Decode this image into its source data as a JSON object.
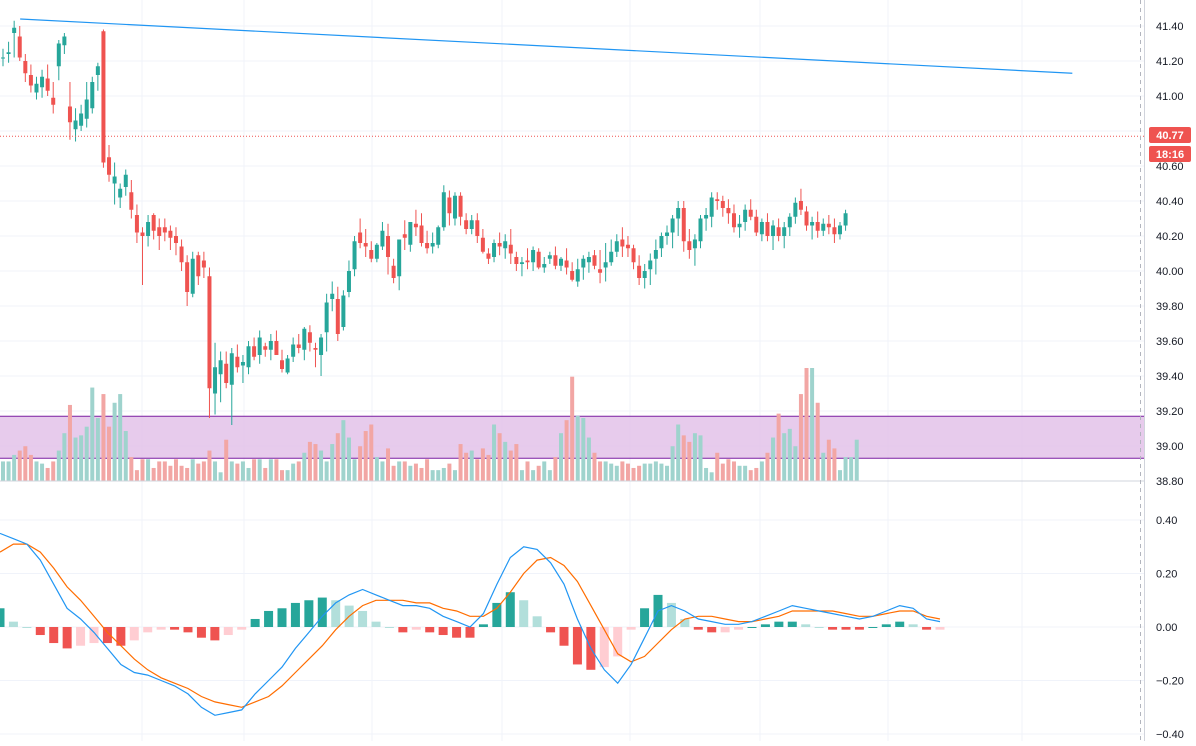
{
  "colors": {
    "up": "#26a69a",
    "down": "#ef5350",
    "up_volume": "#9fd3cd",
    "down_volume": "#f2a6a4",
    "trendline": "#2196f3",
    "macd_line": "#2196f3",
    "signal_line": "#ff6d00",
    "hist_up_strong": "#26a69a",
    "hist_up_weak": "#b2dfdb",
    "hist_down_strong": "#ef5350",
    "hist_down_weak": "#ffcdd2",
    "zone_fill": "#e1bee7",
    "zone_border": "#7b1fa2",
    "grid": "#f0f3fa",
    "price_line": "#ef5350"
  },
  "price_axis": {
    "ticks": [
      "41.40",
      "41.20",
      "41.00",
      "40.80",
      "40.60",
      "40.40",
      "40.20",
      "40.00",
      "39.80",
      "39.60",
      "39.40",
      "39.20",
      "39.00",
      "38.80"
    ],
    "last_price_label": "40.77",
    "countdown_label": "18:16"
  },
  "macd_axis": {
    "ticks": [
      "0.40",
      "0.20",
      "0.00",
      "−0.20",
      "−0.40"
    ]
  },
  "chart_data": [
    {
      "type": "candlestick",
      "ylim": [
        38.8,
        41.45
      ],
      "last_price": 40.77,
      "grid": true,
      "trendline": {
        "from": {
          "bar": 2,
          "price": 41.44
        },
        "to": {
          "bar": 154,
          "price": 41.13
        }
      },
      "zone": {
        "low": 38.93,
        "high": 39.17
      },
      "volume": {
        "overlay": "bottom of price pane",
        "values": [
          9,
          9,
          12,
          14,
          16,
          12,
          9,
          8,
          6,
          9,
          14,
          22,
          35,
          20,
          21,
          25,
          43,
          29,
          40,
          25,
          36,
          40,
          23,
          11,
          5,
          10,
          10,
          6,
          9,
          9,
          7,
          10,
          7,
          6,
          10,
          8,
          9,
          14,
          9,
          4,
          19,
          9,
          8,
          9,
          6,
          10,
          10,
          6,
          10,
          10,
          5,
          5,
          8,
          9,
          13,
          18,
          17,
          14,
          9,
          17,
          22,
          28,
          20,
          10,
          16,
          23,
          26,
          11,
          9,
          15,
          7,
          9,
          9,
          7,
          8,
          6,
          10,
          5,
          5,
          6,
          8,
          5,
          17,
          13,
          14,
          10,
          15,
          12,
          26,
          22,
          18,
          14,
          17,
          5,
          9,
          5,
          7,
          9,
          5,
          11,
          22,
          28,
          48,
          30,
          29,
          20,
          13,
          9,
          9,
          8,
          7,
          9,
          8,
          6,
          7,
          8,
          8,
          9,
          8,
          7,
          16,
          26,
          21,
          18,
          22,
          21,
          6,
          4,
          13,
          8,
          10,
          9,
          7,
          7,
          5,
          6,
          9,
          13,
          20,
          31,
          22,
          24,
          16,
          40,
          52,
          52,
          36,
          13,
          19,
          15,
          5,
          11,
          11,
          19
        ],
        "max": 52
      },
      "candles": [
        [
          41.22,
          41.27,
          41.17,
          41.22
        ],
        [
          41.24,
          41.31,
          41.19,
          41.25
        ],
        [
          41.36,
          41.43,
          41.22,
          41.39
        ],
        [
          41.34,
          41.4,
          41.2,
          41.22
        ],
        [
          41.2,
          41.24,
          41.08,
          41.13
        ],
        [
          41.12,
          41.18,
          41.02,
          41.06
        ],
        [
          41.02,
          41.11,
          40.98,
          41.07
        ],
        [
          41.05,
          41.15,
          40.99,
          41.11
        ],
        [
          41.1,
          41.18,
          41.0,
          41.03
        ],
        [
          40.99,
          41.08,
          40.9,
          40.95
        ],
        [
          41.17,
          41.32,
          41.09,
          41.3
        ],
        [
          41.29,
          41.36,
          41.24,
          41.34
        ],
        [
          40.94,
          41.08,
          40.75,
          40.85
        ],
        [
          40.81,
          40.93,
          40.74,
          40.86
        ],
        [
          40.83,
          40.95,
          40.8,
          40.9
        ],
        [
          40.87,
          41.08,
          40.82,
          40.98
        ],
        [
          40.93,
          41.11,
          40.9,
          41.08
        ],
        [
          41.12,
          41.19,
          41.03,
          41.17
        ],
        [
          41.37,
          41.38,
          40.59,
          40.62
        ],
        [
          40.65,
          40.72,
          40.51,
          40.55
        ],
        [
          40.5,
          40.62,
          40.38,
          40.54
        ],
        [
          40.42,
          40.5,
          40.36,
          40.47
        ],
        [
          40.48,
          40.58,
          40.43,
          40.55
        ],
        [
          40.45,
          40.52,
          40.3,
          40.35
        ],
        [
          40.32,
          40.38,
          40.16,
          40.22
        ],
        [
          40.22,
          40.25,
          39.92,
          40.2
        ],
        [
          40.2,
          40.32,
          40.14,
          40.28
        ],
        [
          40.32,
          40.33,
          40.18,
          40.23
        ],
        [
          40.25,
          40.3,
          40.12,
          40.2
        ],
        [
          40.25,
          40.3,
          40.17,
          40.22
        ],
        [
          40.23,
          40.26,
          40.12,
          40.19
        ],
        [
          40.2,
          40.25,
          40.09,
          40.16
        ],
        [
          40.14,
          40.18,
          40.0,
          40.05
        ],
        [
          40.05,
          40.09,
          39.8,
          39.88
        ],
        [
          39.87,
          40.11,
          39.85,
          40.07
        ],
        [
          40.09,
          40.11,
          39.92,
          39.97
        ],
        [
          40.06,
          40.11,
          39.96,
          40.02
        ],
        [
          39.97,
          40.02,
          39.16,
          39.33
        ],
        [
          39.3,
          39.59,
          39.18,
          39.45
        ],
        [
          39.41,
          39.54,
          39.25,
          39.49
        ],
        [
          39.47,
          39.54,
          39.33,
          39.36
        ],
        [
          39.35,
          39.56,
          39.12,
          39.53
        ],
        [
          39.51,
          39.58,
          39.42,
          39.45
        ],
        [
          39.46,
          39.52,
          39.36,
          39.48
        ],
        [
          39.45,
          39.6,
          39.41,
          39.57
        ],
        [
          39.57,
          39.62,
          39.49,
          39.51
        ],
        [
          39.52,
          39.66,
          39.47,
          39.62
        ],
        [
          39.57,
          39.59,
          39.51,
          39.55
        ],
        [
          39.55,
          39.64,
          39.49,
          39.6
        ],
        [
          39.6,
          39.66,
          39.52,
          39.52
        ],
        [
          39.49,
          39.55,
          39.42,
          39.44
        ],
        [
          39.42,
          39.52,
          39.41,
          39.5
        ],
        [
          39.51,
          39.62,
          39.48,
          39.58
        ],
        [
          39.58,
          39.64,
          39.53,
          39.56
        ],
        [
          39.55,
          39.68,
          39.49,
          39.67
        ],
        [
          39.65,
          39.69,
          39.54,
          39.59
        ],
        [
          39.56,
          39.59,
          39.45,
          39.55
        ],
        [
          39.52,
          39.64,
          39.4,
          39.62
        ],
        [
          39.65,
          39.87,
          39.54,
          39.82
        ],
        [
          39.84,
          39.94,
          39.77,
          39.87
        ],
        [
          39.84,
          39.91,
          39.6,
          39.64
        ],
        [
          39.68,
          39.89,
          39.66,
          39.86
        ],
        [
          39.88,
          40.06,
          39.85,
          40.0
        ],
        [
          40.01,
          40.2,
          39.97,
          40.17
        ],
        [
          40.22,
          40.3,
          40.13,
          40.16
        ],
        [
          40.16,
          40.24,
          40.08,
          40.14
        ],
        [
          40.12,
          40.17,
          40.05,
          40.07
        ],
        [
          40.07,
          40.16,
          40.05,
          40.15
        ],
        [
          40.14,
          40.28,
          40.12,
          40.23
        ],
        [
          40.2,
          40.27,
          39.98,
          40.08
        ],
        [
          40.03,
          40.07,
          39.93,
          39.96
        ],
        [
          39.97,
          40.17,
          39.89,
          40.18
        ],
        [
          40.21,
          40.29,
          40.12,
          40.19
        ],
        [
          40.15,
          40.28,
          40.11,
          40.28
        ],
        [
          40.27,
          40.35,
          40.2,
          40.25
        ],
        [
          40.26,
          40.33,
          40.14,
          40.16
        ],
        [
          40.16,
          40.23,
          40.1,
          40.13
        ],
        [
          40.14,
          40.22,
          40.1,
          40.16
        ],
        [
          40.15,
          40.26,
          40.13,
          40.25
        ],
        [
          40.25,
          40.49,
          40.23,
          40.45
        ],
        [
          40.42,
          40.46,
          40.26,
          40.33
        ],
        [
          40.3,
          40.45,
          40.26,
          40.43
        ],
        [
          40.43,
          40.45,
          40.26,
          40.31
        ],
        [
          40.29,
          40.33,
          40.21,
          40.24
        ],
        [
          40.24,
          40.32,
          40.21,
          40.29
        ],
        [
          40.29,
          40.33,
          40.16,
          40.2
        ],
        [
          40.19,
          40.24,
          40.1,
          40.11
        ],
        [
          40.1,
          40.13,
          40.04,
          40.07
        ],
        [
          40.08,
          40.18,
          40.05,
          40.16
        ],
        [
          40.16,
          40.22,
          40.09,
          40.14
        ],
        [
          40.13,
          40.21,
          40.07,
          40.17
        ],
        [
          40.15,
          40.24,
          40.04,
          40.1
        ],
        [
          40.08,
          40.11,
          40.0,
          40.04
        ],
        [
          40.04,
          40.08,
          39.97,
          40.05
        ],
        [
          40.06,
          40.13,
          40.01,
          40.05
        ],
        [
          40.05,
          40.14,
          40.0,
          40.12
        ],
        [
          40.11,
          40.13,
          40.01,
          40.02
        ],
        [
          40.02,
          40.08,
          39.99,
          40.04
        ],
        [
          40.07,
          40.11,
          40.04,
          40.09
        ],
        [
          40.09,
          40.14,
          40.01,
          40.03
        ],
        [
          40.03,
          40.08,
          40.0,
          40.07
        ],
        [
          40.06,
          40.13,
          39.98,
          40.02
        ],
        [
          40.0,
          40.05,
          39.94,
          39.95
        ],
        [
          39.94,
          40.07,
          39.91,
          40.01
        ],
        [
          40.02,
          40.09,
          39.95,
          40.07
        ],
        [
          40.05,
          40.11,
          39.99,
          40.08
        ],
        [
          40.09,
          40.12,
          40.01,
          40.03
        ],
        [
          40.01,
          40.12,
          39.93,
          39.99
        ],
        [
          40.02,
          40.16,
          39.94,
          40.05
        ],
        [
          40.05,
          40.18,
          40.03,
          40.11
        ],
        [
          40.11,
          40.21,
          40.08,
          40.17
        ],
        [
          40.18,
          40.25,
          40.08,
          40.14
        ],
        [
          40.15,
          40.2,
          40.08,
          40.13
        ],
        [
          40.13,
          40.15,
          40.01,
          40.05
        ],
        [
          40.03,
          40.09,
          39.92,
          39.96
        ],
        [
          39.96,
          40.04,
          39.9,
          40.0
        ],
        [
          40.01,
          40.1,
          39.92,
          40.06
        ],
        [
          40.07,
          40.18,
          39.98,
          40.12
        ],
        [
          40.13,
          40.22,
          40.08,
          40.2
        ],
        [
          40.2,
          40.26,
          40.15,
          40.22
        ],
        [
          40.22,
          40.32,
          40.13,
          40.3
        ],
        [
          40.3,
          40.4,
          40.2,
          40.36
        ],
        [
          40.36,
          40.4,
          40.11,
          40.17
        ],
        [
          40.17,
          40.24,
          40.07,
          40.12
        ],
        [
          40.13,
          40.21,
          40.03,
          40.18
        ],
        [
          40.17,
          40.32,
          40.13,
          40.3
        ],
        [
          40.3,
          40.36,
          40.23,
          40.32
        ],
        [
          40.31,
          40.45,
          40.25,
          40.42
        ],
        [
          40.41,
          40.45,
          40.35,
          40.4
        ],
        [
          40.4,
          40.43,
          40.31,
          40.36
        ],
        [
          40.36,
          40.41,
          40.27,
          40.33
        ],
        [
          40.33,
          40.38,
          40.22,
          40.25
        ],
        [
          40.25,
          40.32,
          40.19,
          40.27
        ],
        [
          40.28,
          40.38,
          40.23,
          40.35
        ],
        [
          40.35,
          40.41,
          40.29,
          40.31
        ],
        [
          40.31,
          40.35,
          40.2,
          40.22
        ],
        [
          40.21,
          40.3,
          40.17,
          40.28
        ],
        [
          40.28,
          40.33,
          40.17,
          40.2
        ],
        [
          40.2,
          40.29,
          40.12,
          40.26
        ],
        [
          40.25,
          40.3,
          40.17,
          40.2
        ],
        [
          40.2,
          40.28,
          40.13,
          40.25
        ],
        [
          40.25,
          40.33,
          40.2,
          40.31
        ],
        [
          40.31,
          40.42,
          40.27,
          40.39
        ],
        [
          40.4,
          40.47,
          40.32,
          40.35
        ],
        [
          40.34,
          40.37,
          40.23,
          40.26
        ],
        [
          40.26,
          40.31,
          40.18,
          40.28
        ],
        [
          40.28,
          40.34,
          40.19,
          40.23
        ],
        [
          40.23,
          40.3,
          40.2,
          40.27
        ],
        [
          40.27,
          40.32,
          40.21,
          40.25
        ],
        [
          40.25,
          40.3,
          40.16,
          40.21
        ],
        [
          40.21,
          40.28,
          40.18,
          40.26
        ],
        [
          40.26,
          40.35,
          40.23,
          40.33
        ]
      ]
    },
    {
      "type": "macd",
      "ylim": [
        -0.42,
        0.45
      ],
      "grid": true,
      "macd": [
        0.35,
        0.33,
        0.31,
        0.25,
        0.16,
        0.07,
        0.03,
        -0.02,
        -0.08,
        -0.14,
        -0.17,
        -0.18,
        -0.2,
        -0.22,
        -0.25,
        -0.3,
        -0.33,
        -0.32,
        -0.31,
        -0.25,
        -0.2,
        -0.15,
        -0.08,
        -0.02,
        0.04,
        0.09,
        0.12,
        0.14,
        0.12,
        0.1,
        0.08,
        0.08,
        0.07,
        0.04,
        0.02,
        0.0,
        0.05,
        0.16,
        0.26,
        0.3,
        0.29,
        0.24,
        0.16,
        0.03,
        -0.08,
        -0.16,
        -0.21,
        -0.14,
        -0.04,
        0.06,
        0.08,
        0.06,
        0.03,
        0.02,
        0.01,
        0.01,
        0.02,
        0.04,
        0.06,
        0.08,
        0.07,
        0.06,
        0.05,
        0.04,
        0.03,
        0.04,
        0.06,
        0.08,
        0.07,
        0.03,
        0.02
      ],
      "signal": [
        0.28,
        0.31,
        0.31,
        0.28,
        0.22,
        0.15,
        0.1,
        0.04,
        -0.02,
        -0.07,
        -0.12,
        -0.16,
        -0.19,
        -0.21,
        -0.23,
        -0.26,
        -0.28,
        -0.29,
        -0.3,
        -0.28,
        -0.26,
        -0.22,
        -0.17,
        -0.12,
        -0.07,
        -0.01,
        0.04,
        0.08,
        0.1,
        0.1,
        0.1,
        0.09,
        0.09,
        0.07,
        0.06,
        0.04,
        0.04,
        0.07,
        0.13,
        0.2,
        0.25,
        0.26,
        0.23,
        0.17,
        0.08,
        -0.01,
        -0.1,
        -0.13,
        -0.11,
        -0.06,
        -0.01,
        0.03,
        0.04,
        0.04,
        0.03,
        0.02,
        0.02,
        0.03,
        0.04,
        0.06,
        0.06,
        0.06,
        0.06,
        0.05,
        0.04,
        0.04,
        0.05,
        0.06,
        0.06,
        0.04,
        0.03
      ]
    }
  ]
}
